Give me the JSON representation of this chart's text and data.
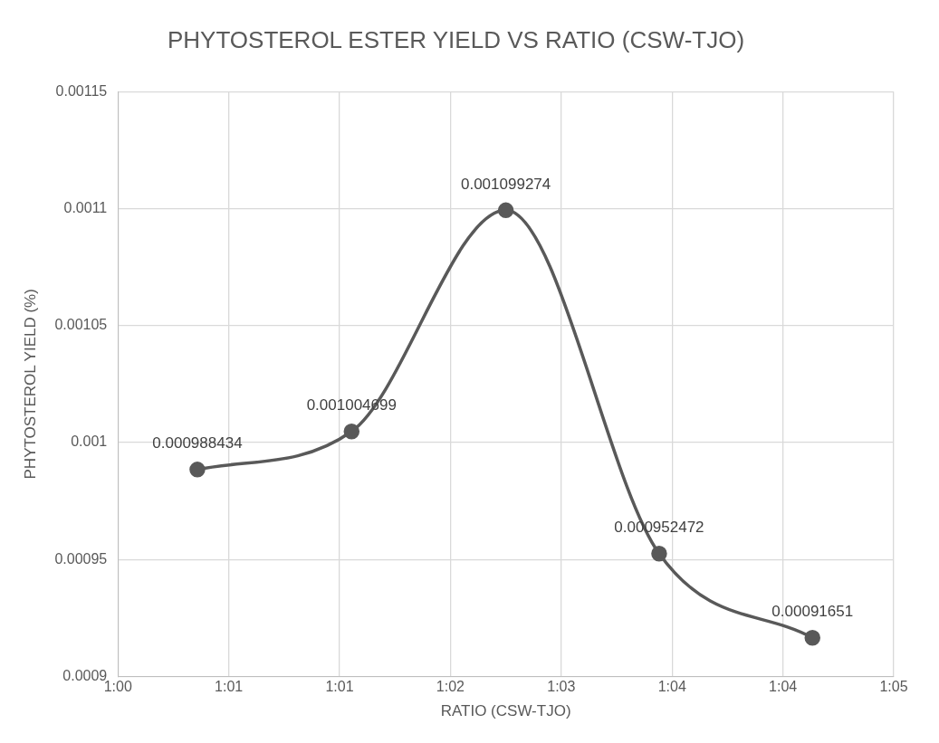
{
  "chart_data": {
    "type": "line",
    "title": "PHYTOSTEROL ESTER YIELD VS RATIO (CSW-TJO)",
    "xlabel": "RATIO (CSW-TJO)",
    "ylabel": "PHYTOSTEROL YIELD (%)",
    "x": [
      1.0086,
      1.0253,
      1.042,
      1.0586,
      1.0752
    ],
    "series": [
      {
        "color": "#595959",
        "values": [
          0.000988434,
          0.001004699,
          0.001099274,
          0.000952472,
          0.00091651
        ]
      }
    ],
    "xlim": [
      1,
      1.084
    ],
    "xticks": [
      {
        "value": 1,
        "label": "1:00"
      },
      {
        "value": 1.012,
        "label": "1:01"
      },
      {
        "value": 1.024,
        "label": "1:01"
      },
      {
        "value": 1.036,
        "label": "1:02"
      },
      {
        "value": 1.048,
        "label": "1:03"
      },
      {
        "value": 1.06,
        "label": "1:04"
      },
      {
        "value": 1.072,
        "label": "1:04"
      },
      {
        "value": 1.084,
        "label": "1:05"
      }
    ],
    "ylim": [
      0.0009,
      0.00115
    ],
    "yticks": [
      0.0009,
      0.00095,
      0.001,
      0.00105,
      0.0011,
      0.00115
    ],
    "grid": true,
    "data_labels": true,
    "marker": "circle",
    "line_style": "solid"
  }
}
